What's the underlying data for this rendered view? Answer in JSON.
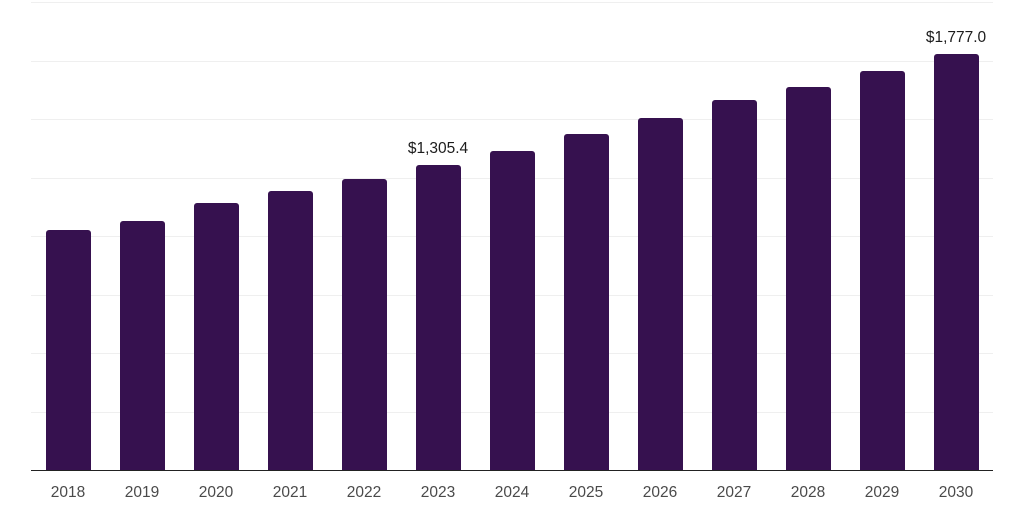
{
  "chart_data": {
    "type": "bar",
    "title": "",
    "xlabel": "",
    "ylabel": "",
    "categories": [
      "2018",
      "2019",
      "2020",
      "2021",
      "2022",
      "2023",
      "2024",
      "2025",
      "2026",
      "2027",
      "2028",
      "2029",
      "2030"
    ],
    "values": [
      1026,
      1066,
      1142,
      1191,
      1243,
      1305.4,
      1364,
      1436,
      1505,
      1581,
      1637,
      1705,
      1777
    ],
    "bar_labels": [
      "",
      "",
      "",
      "",
      "",
      "$1,305.4",
      "",
      "",
      "",
      "",
      "",
      "",
      "$1,777.0"
    ],
    "ylim": [
      0,
      2000
    ],
    "gridline_step": 250,
    "grid": "horizontal",
    "legend_position": "none",
    "colors": {
      "bar": "#36114F",
      "gridline": "#efefef",
      "axis_line": "#222222",
      "tick_label": "#4a4a4a",
      "value_label": "#1c1c1c",
      "background": "#ffffff"
    }
  }
}
